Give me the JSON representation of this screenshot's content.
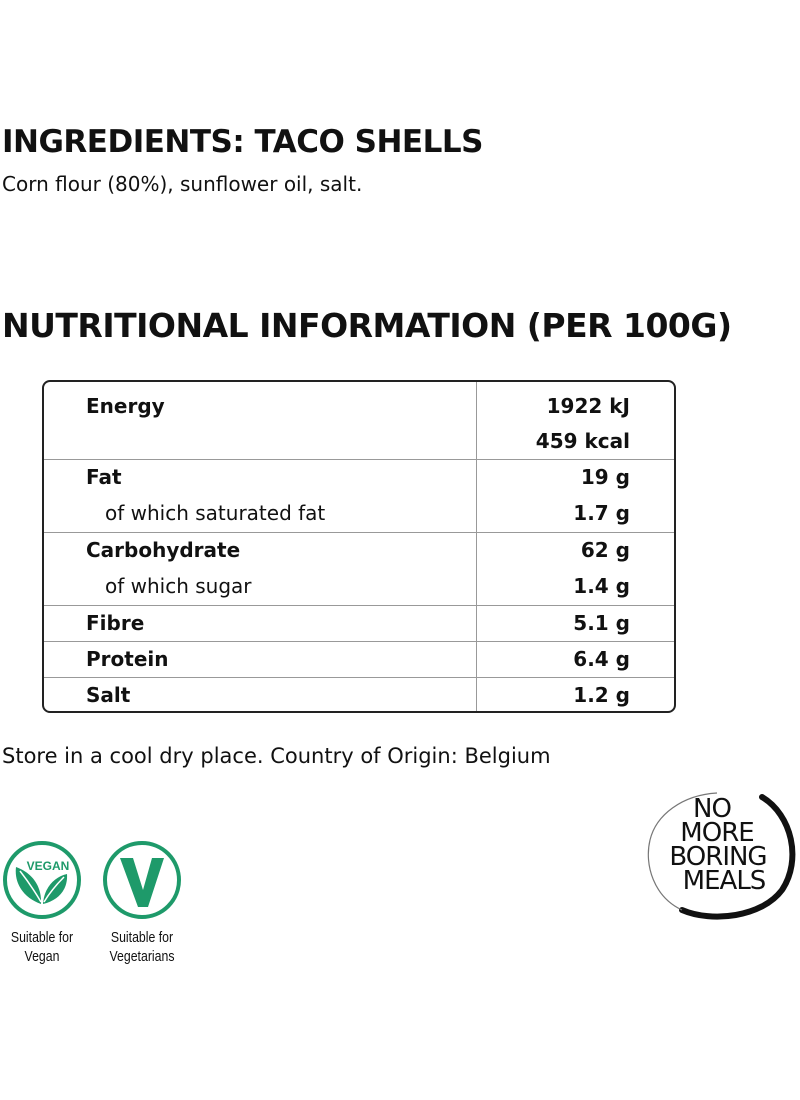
{
  "ingredients": {
    "title": "INGREDIENTS: TACO SHELLS",
    "text": "Corn flour (80%), sunflower oil, salt."
  },
  "nutrition": {
    "title": "NUTRITIONAL INFORMATION (PER 100G)",
    "rows": [
      {
        "lines": [
          {
            "label": "Energy",
            "value": "1922 kJ"
          },
          {
            "label": "",
            "value": "459 kcal"
          }
        ]
      },
      {
        "lines": [
          {
            "label": "Fat",
            "value": "19 g"
          },
          {
            "label": "of which saturated fat",
            "value": "1.7 g"
          }
        ]
      },
      {
        "lines": [
          {
            "label": "Carbohydrate",
            "value": "62 g"
          },
          {
            "label": "of which sugar",
            "value": "1.4 g"
          }
        ]
      },
      {
        "lines": [
          {
            "label": "Fibre",
            "value": "5.1 g"
          }
        ]
      },
      {
        "lines": [
          {
            "label": "Protein",
            "value": "6.4 g"
          }
        ]
      },
      {
        "lines": [
          {
            "label": "Salt",
            "value": "1.2 g"
          }
        ]
      }
    ]
  },
  "storage": "Store in a cool dry place. Country of Origin: Belgium",
  "badges": [
    {
      "icon": "vegan-leaf-icon",
      "icon_text": "VEGAN",
      "caption_1": "Suitable for",
      "caption_2": "Vegan",
      "color": "#1e9a6a"
    },
    {
      "icon": "vegetarian-v-icon",
      "caption_1": "Suitable for",
      "caption_2": "Vegetarians",
      "color": "#1e9a6a"
    }
  ],
  "logo": {
    "text": "NO MORE BORING MEALS"
  }
}
